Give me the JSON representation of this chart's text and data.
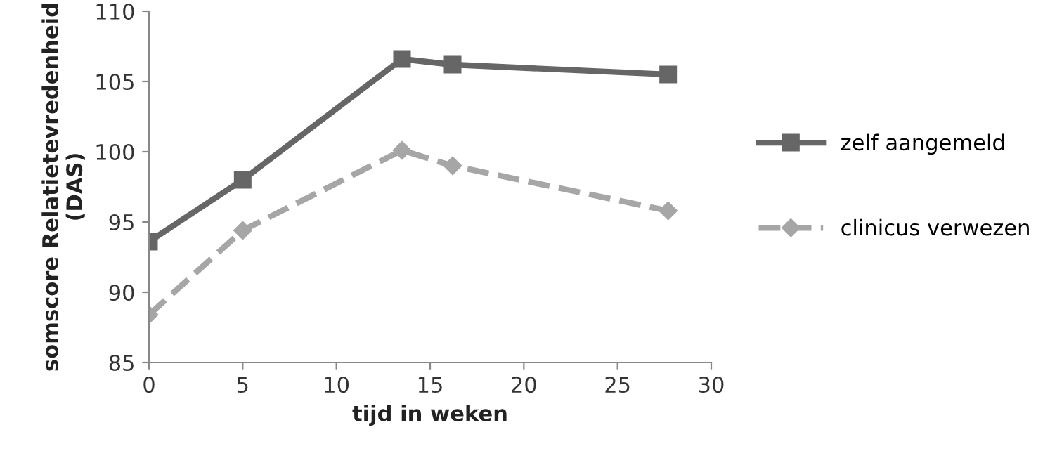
{
  "chart_data": {
    "type": "line",
    "xlabel": "tijd in weken",
    "ylabel": "somscore Relatietevredenheid\n(DAS)",
    "xlim": [
      0,
      30
    ],
    "xticks": [
      0,
      5,
      10,
      15,
      20,
      25,
      30
    ],
    "ylim": [
      85,
      110
    ],
    "yticks": [
      85,
      90,
      95,
      100,
      105,
      110
    ],
    "grid": false,
    "legend": "right",
    "series": [
      {
        "name": "zelf aangemeld",
        "color": "#666666",
        "marker": "square",
        "line_style": "solid",
        "x": [
          0,
          5,
          13.5,
          16.2,
          27.7
        ],
        "values": [
          93.6,
          98.0,
          106.6,
          106.2,
          105.5
        ]
      },
      {
        "name": "clinicus verwezen",
        "color": "#a6a6a6",
        "marker": "diamond",
        "line_style": "dashed",
        "x": [
          0,
          5,
          13.5,
          16.2,
          27.7
        ],
        "values": [
          88.4,
          94.4,
          100.1,
          99.0,
          95.8
        ]
      }
    ]
  }
}
